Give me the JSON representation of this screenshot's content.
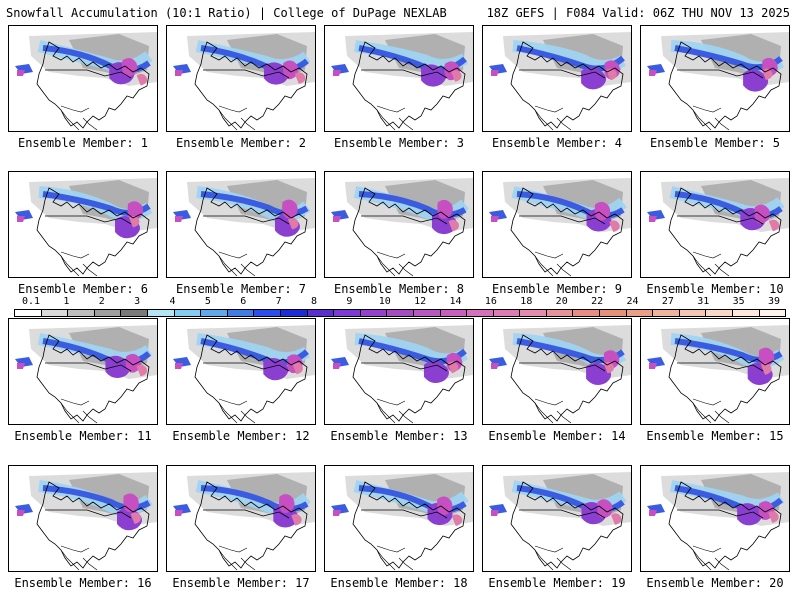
{
  "header": {
    "left_title": "Snowfall Accumulation (10:1 Ratio) | College of DuPage NEXLAB",
    "right_title": "18Z GEFS | F084 Valid: 06Z THU NOV 13 2025"
  },
  "members": [
    "Ensemble Member: 1",
    "Ensemble Member: 2",
    "Ensemble Member: 3",
    "Ensemble Member: 4",
    "Ensemble Member: 5",
    "Ensemble Member: 6",
    "Ensemble Member: 7",
    "Ensemble Member: 8",
    "Ensemble Member: 9",
    "Ensemble Member: 10",
    "Ensemble Member: 11",
    "Ensemble Member: 12",
    "Ensemble Member: 13",
    "Ensemble Member: 14",
    "Ensemble Member: 15",
    "Ensemble Member: 16",
    "Ensemble Member: 17",
    "Ensemble Member: 18",
    "Ensemble Member: 19",
    "Ensemble Member: 20"
  ],
  "colorbar": {
    "labels": [
      "0.1",
      "1",
      "2",
      "3",
      "4",
      "5",
      "6",
      "7",
      "8",
      "9",
      "10",
      "12",
      "14",
      "16",
      "18",
      "20",
      "22",
      "24",
      "27",
      "31",
      "35",
      "39"
    ],
    "colors": [
      "#ffffff",
      "#d9d9d9",
      "#bdbdbd",
      "#9e9e9e",
      "#7a7a7a",
      "#b3e6f5",
      "#82cdf2",
      "#5fa8ee",
      "#3e7ce8",
      "#2a4ff0",
      "#1c2cd6",
      "#5a2fd0",
      "#7b3ad6",
      "#9640cf",
      "#a74bc4",
      "#b856c2",
      "#c85fbf",
      "#d66fbd",
      "#e07ab7",
      "#e58bb0",
      "#e9929c",
      "#ea8a82",
      "#e88f79",
      "#eb9f86",
      "#f0b39c",
      "#f5c6b1",
      "#f9d8c6",
      "#fce8dc",
      "#fff4ec"
    ]
  },
  "map_colors": {
    "light_gray": "#d8d8d8",
    "mid_gray": "#a8a8a8",
    "light_blue": "#9fd3f0",
    "blue": "#3b5ce0",
    "purple": "#8a3fd1",
    "magenta": "#c64fc1",
    "pink": "#e07aa8"
  }
}
